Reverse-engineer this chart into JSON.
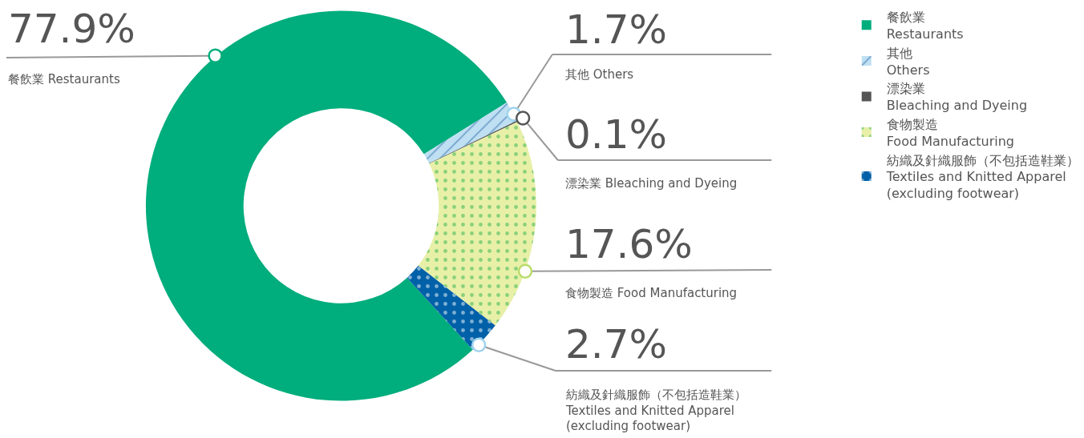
{
  "chart_data": {
    "type": "donut",
    "categories": [
      "餐飲業 Restaurants",
      "其他 Others",
      "漂染業 Bleaching and Dyeing",
      "食物製造 Food Manufacturing",
      "紡織及針織服飾（不包括造鞋業） Textiles and Knitted Apparel (excluding footwear)"
    ],
    "values": [
      77.9,
      1.7,
      0.1,
      17.6,
      2.7
    ],
    "value_labels": [
      "77.9%",
      "1.7%",
      "0.1%",
      "17.6%",
      "2.7%"
    ],
    "colors": [
      "#00ad7c",
      "#bfe0f2",
      "#555555",
      "#e8f0a8",
      "#0060a8"
    ],
    "legend": "top right"
  }
}
